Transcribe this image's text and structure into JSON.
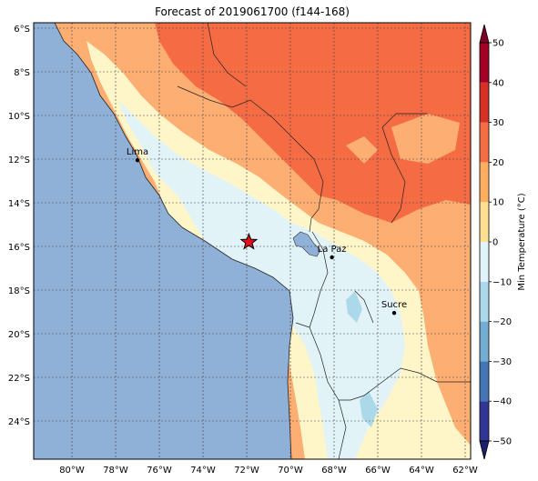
{
  "title": "Forecast of 2019061700 (f144-168)",
  "map": {
    "lon_ticks": [
      "80°W",
      "78°W",
      "76°W",
      "74°W",
      "72°W",
      "70°W",
      "68°W",
      "66°W",
      "64°W",
      "62°W"
    ],
    "lat_ticks": [
      "6°S",
      "8°S",
      "10°S",
      "12°S",
      "14°S",
      "16°S",
      "18°S",
      "20°S",
      "22°S",
      "24°S"
    ],
    "cities": [
      {
        "name": "Lima",
        "lon": -77.0,
        "lat": -12.05
      },
      {
        "name": "La Paz",
        "lon": -68.1,
        "lat": -16.5
      },
      {
        "name": "Sucre",
        "lon": -65.25,
        "lat": -19.05
      }
    ],
    "marker": {
      "type": "star",
      "lon": -71.9,
      "lat": -15.8,
      "color": "#e3101b"
    }
  },
  "colorbar": {
    "label": "Min Temperature (°C)",
    "ticks": [
      "50",
      "40",
      "30",
      "20",
      "10",
      "0",
      "−10",
      "−20",
      "−30",
      "−40",
      "−50"
    ],
    "colors": [
      "#313695",
      "#4575b4",
      "#74add1",
      "#abd9e9",
      "#e0f3f8",
      "#fee090",
      "#fdae61",
      "#f46d43",
      "#d73027",
      "#a50026"
    ],
    "extend_low": "#1a1f6e",
    "extend_high": "#800026"
  },
  "colors": {
    "ocean": "#8fb0d7",
    "band_0_10": "#fef6c8",
    "band_m10_0": "#e2f3f8",
    "band_10_20": "#fdae73",
    "band_20_30": "#f56b43"
  }
}
